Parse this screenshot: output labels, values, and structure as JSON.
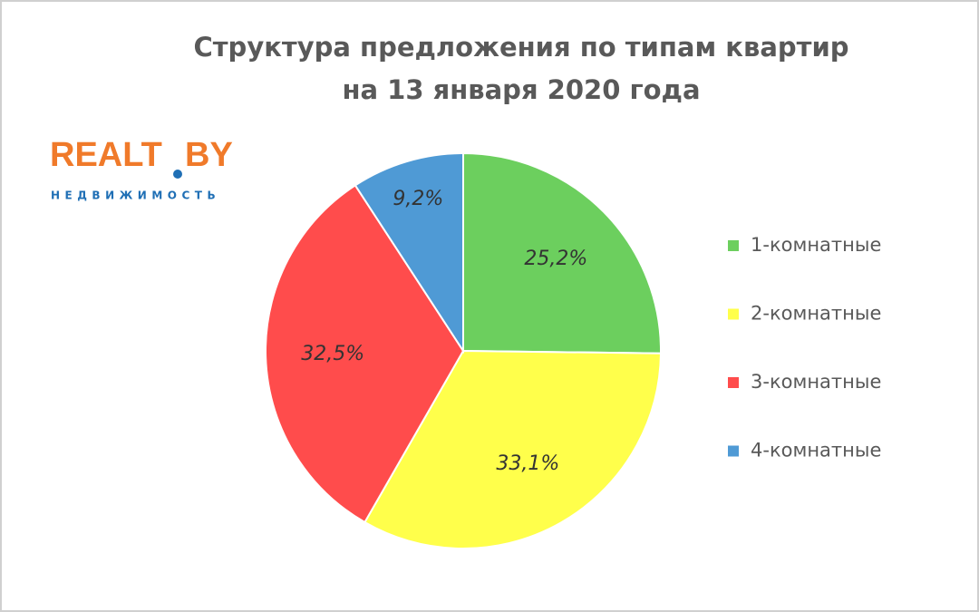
{
  "chart_data": {
    "type": "pie",
    "title": [
      "Структура предложения по типам квартир",
      "на 13 января 2020 года"
    ],
    "logo": {
      "name": "REALT",
      "suffix": "BY",
      "tagline": "недвижимость"
    },
    "categories": [
      "1-комнатные",
      "2-комнатные",
      "3-комнатные",
      "4-комнатные"
    ],
    "values": [
      25.2,
      33.1,
      32.5,
      9.2
    ],
    "value_labels": [
      "25,2%",
      "33,1%",
      "32,5%",
      "9,2%"
    ],
    "colors": [
      "#6ccf5e",
      "#ffff4b",
      "#ff4c4c",
      "#4f9ad5"
    ],
    "legend": "right"
  }
}
